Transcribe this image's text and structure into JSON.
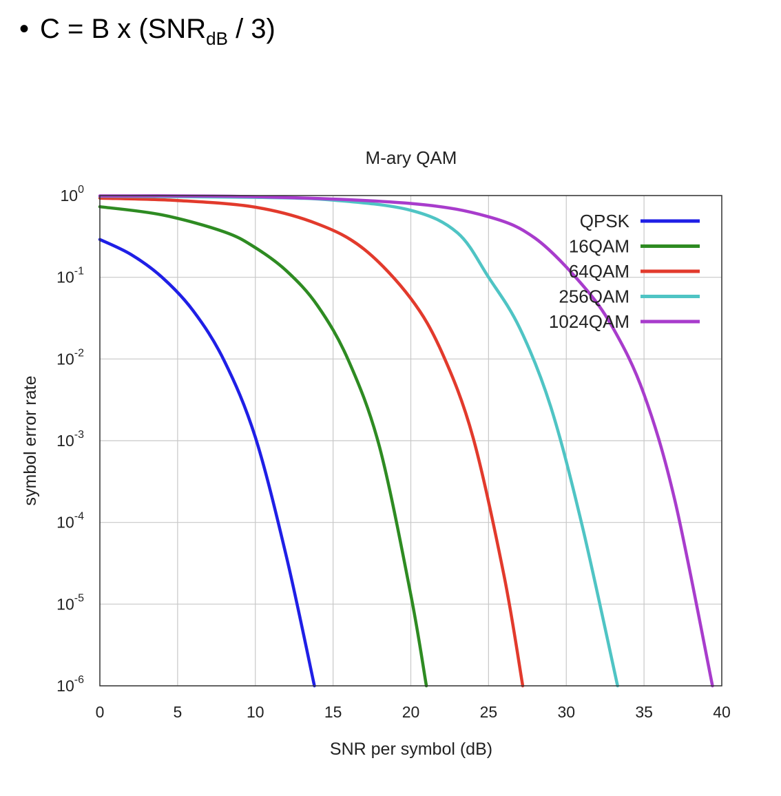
{
  "heading": {
    "bullet": "•",
    "formula_prefix": "C = B x (SNR",
    "formula_sub": "dB",
    "formula_suffix": " / 3)"
  },
  "chart_data": {
    "type": "line",
    "title": "M-ary QAM",
    "xlabel": "SNR per symbol (dB)",
    "ylabel": "symbol error rate",
    "xlim": [
      0,
      40
    ],
    "ylim": [
      1e-06,
      1
    ],
    "yscale": "log",
    "grid": true,
    "legend_position": "top-right",
    "x_ticks": [
      0,
      5,
      10,
      15,
      20,
      25,
      30,
      35,
      40
    ],
    "y_ticks": [
      {
        "base": "10",
        "exp": "0"
      },
      {
        "base": "10",
        "exp": "-1"
      },
      {
        "base": "10",
        "exp": "-2"
      },
      {
        "base": "10",
        "exp": "-3"
      },
      {
        "base": "10",
        "exp": "-4"
      },
      {
        "base": "10",
        "exp": "-5"
      },
      {
        "base": "10",
        "exp": "-6"
      }
    ],
    "series": [
      {
        "name": "QPSK",
        "color": "#1f1fe6",
        "x": [
          0,
          2,
          4,
          6,
          8,
          10,
          12,
          13.8
        ],
        "y": [
          0.29,
          0.19,
          0.1,
          0.039,
          0.0095,
          0.0011,
          3.8e-05,
          1e-06
        ]
      },
      {
        "name": "16QAM",
        "color": "#2e8b22",
        "x": [
          0,
          4,
          8,
          10,
          12,
          14,
          16,
          18,
          20,
          21
        ],
        "y": [
          0.73,
          0.58,
          0.36,
          0.23,
          0.12,
          0.045,
          0.0095,
          0.00082,
          1.3e-05,
          1e-06
        ]
      },
      {
        "name": "64QAM",
        "color": "#e23a2c",
        "x": [
          0,
          5,
          10,
          14,
          17,
          20,
          22,
          24,
          26,
          27.2
        ],
        "y": [
          0.93,
          0.87,
          0.72,
          0.45,
          0.22,
          0.055,
          0.012,
          0.0011,
          2.2e-05,
          1e-06
        ]
      },
      {
        "name": "256QAM",
        "color": "#4fc4c4",
        "x": [
          0,
          10,
          15,
          20,
          23,
          25,
          27,
          29,
          31,
          33.3
        ],
        "y": [
          0.98,
          0.95,
          0.88,
          0.66,
          0.35,
          0.1,
          0.024,
          0.0026,
          9.5e-05,
          1e-06
        ]
      },
      {
        "name": "1024QAM",
        "color": "#a83ccc",
        "x": [
          0,
          10,
          20,
          25,
          28,
          31,
          33,
          35,
          37,
          39.4
        ],
        "y": [
          0.99,
          0.97,
          0.8,
          0.55,
          0.3,
          0.082,
          0.024,
          0.0037,
          0.00018,
          1e-06
        ]
      }
    ]
  }
}
